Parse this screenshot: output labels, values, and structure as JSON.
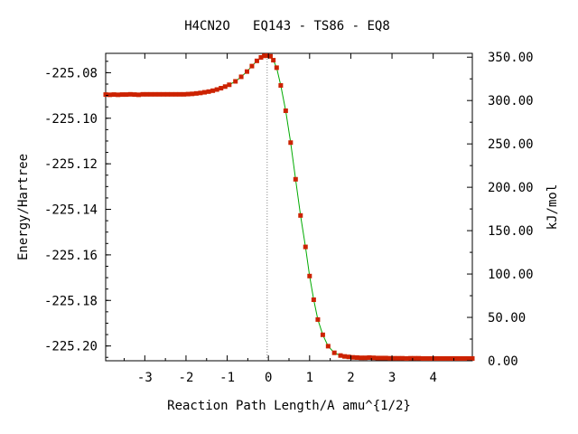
{
  "chart_data": {
    "type": "line",
    "title": "H4CN2O   EQ143 - TS86 - EQ8",
    "xlabel": "Reaction Path Length/A amu^{1/2}",
    "ylabel": "Energy/Hartree",
    "y2label": "kJ/mol",
    "xlim": [
      -3.95,
      4.95
    ],
    "ylim": [
      -225.2065,
      -225.0715
    ],
    "y2lim": [
      0,
      354.4
    ],
    "grid": false,
    "xticks": [
      -3,
      -2,
      -1,
      0,
      1,
      2,
      3,
      4
    ],
    "xtick_labels": [
      "-3",
      "-2",
      "-1",
      "0",
      "1",
      "2",
      "3",
      "4"
    ],
    "yticks": [
      -225.08,
      -225.1,
      -225.12,
      -225.14,
      -225.16,
      -225.18,
      -225.2
    ],
    "ytick_labels": [
      "-225.08",
      "-225.10",
      "-225.12",
      "-225.14",
      "-225.16",
      "-225.18",
      "-225.20"
    ],
    "y2ticks": [
      350,
      300,
      250,
      200,
      150,
      100,
      50,
      0
    ],
    "y2tick_labels": [
      "350.00",
      "300.00",
      "250.00",
      "200.00",
      "150.00",
      "100.00",
      "50.00",
      "0.00"
    ],
    "ts_marker_x": -0.03,
    "series": [
      {
        "color_line": "#00aa00",
        "color_marker": "#cc2200",
        "x": [
          -3.95,
          -3.85,
          -3.75,
          -3.65,
          -3.55,
          -3.45,
          -3.35,
          -3.25,
          -3.15,
          -3.05,
          -2.95,
          -2.85,
          -2.75,
          -2.65,
          -2.55,
          -2.45,
          -2.35,
          -2.25,
          -2.15,
          -2.05,
          -1.95,
          -1.85,
          -1.75,
          -1.65,
          -1.55,
          -1.45,
          -1.35,
          -1.25,
          -1.15,
          -1.05,
          -0.95,
          -0.8,
          -0.66,
          -0.52,
          -0.4,
          -0.28,
          -0.18,
          -0.1,
          -0.03,
          0.05,
          0.12,
          0.2,
          0.3,
          0.42,
          0.54,
          0.66,
          0.78,
          0.9,
          1.0,
          1.1,
          1.2,
          1.32,
          1.45,
          1.6,
          1.75,
          1.85,
          1.95,
          2.05,
          2.15,
          2.25,
          2.35,
          2.45,
          2.55,
          2.65,
          2.75,
          2.85,
          2.95,
          3.05,
          3.15,
          3.25,
          3.35,
          3.45,
          3.55,
          3.65,
          3.75,
          3.85,
          3.95,
          4.05,
          4.15,
          4.25,
          4.35,
          4.45,
          4.55,
          4.65,
          4.75,
          4.85,
          4.95
        ],
        "y": [
          -225.0896,
          -225.0897,
          -225.0896,
          -225.0897,
          -225.0896,
          -225.0896,
          -225.0895,
          -225.0896,
          -225.0897,
          -225.0895,
          -225.0895,
          -225.0895,
          -225.0895,
          -225.0895,
          -225.0895,
          -225.0895,
          -225.0895,
          -225.0895,
          -225.0895,
          -225.0895,
          -225.0894,
          -225.0893,
          -225.0891,
          -225.0889,
          -225.0886,
          -225.0883,
          -225.0879,
          -225.0874,
          -225.0868,
          -225.0861,
          -225.0853,
          -225.0838,
          -225.0818,
          -225.0795,
          -225.0771,
          -225.0748,
          -225.0733,
          -225.0726,
          -225.0725,
          -225.0728,
          -225.0745,
          -225.0778,
          -225.0856,
          -225.0967,
          -225.1107,
          -225.1268,
          -225.1427,
          -225.1565,
          -225.1693,
          -225.1797,
          -225.1884,
          -225.1951,
          -225.2001,
          -225.203,
          -225.2042,
          -225.2046,
          -225.2048,
          -225.205,
          -225.2051,
          -225.2052,
          -225.2052,
          -225.2051,
          -225.2052,
          -225.2053,
          -225.2053,
          -225.2053,
          -225.2054,
          -225.2054,
          -225.2054,
          -225.2054,
          -225.2055,
          -225.2054,
          -225.2054,
          -225.2054,
          -225.2055,
          -225.2055,
          -225.2055,
          -225.2055,
          -225.2055,
          -225.2055,
          -225.2055,
          -225.2055,
          -225.2055,
          -225.2055,
          -225.2055,
          -225.2055,
          -225.2055
        ]
      }
    ]
  }
}
